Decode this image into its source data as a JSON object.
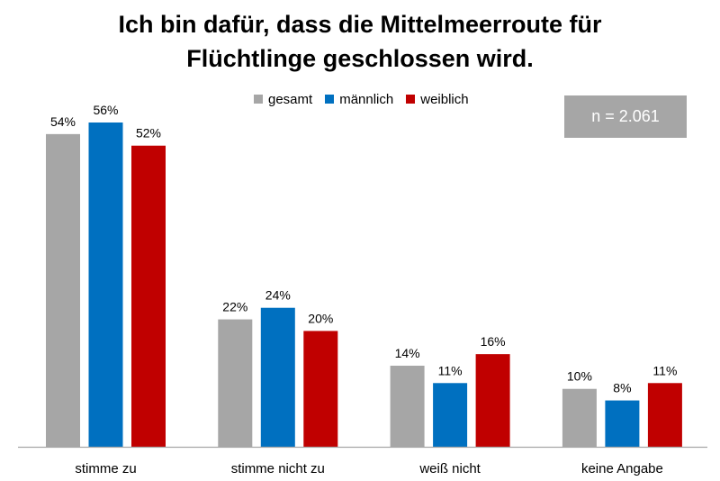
{
  "title_line1": "Ich bin dafür, dass die Mittelmeerroute für",
  "title_line2": "Flüchtlinge geschlossen wird.",
  "sample_size": "n = 2.061",
  "chart_data": {
    "type": "bar",
    "title": "Ich bin dafür, dass die Mittelmeerroute für Flüchtlinge geschlossen wird.",
    "categories": [
      "stimme zu",
      "stimme nicht zu",
      "weiß nicht",
      "keine Angabe"
    ],
    "series": [
      {
        "name": "gesamt",
        "color": "#a6a6a6",
        "values": [
          54,
          22,
          14,
          10
        ],
        "labels": [
          "54%",
          "22%",
          "14%",
          "10%"
        ]
      },
      {
        "name": "männlich",
        "color": "#0070c0",
        "values": [
          56,
          24,
          11,
          8
        ],
        "labels": [
          "56%",
          "24%",
          "11%",
          "8%"
        ]
      },
      {
        "name": "weiblich",
        "color": "#c00000",
        "values": [
          52,
          20,
          16,
          11
        ],
        "labels": [
          "52%",
          "20%",
          "16%",
          "11%"
        ]
      }
    ],
    "unit": "%",
    "ylim": [
      0,
      56
    ],
    "legend_position": "top",
    "grid": false
  }
}
